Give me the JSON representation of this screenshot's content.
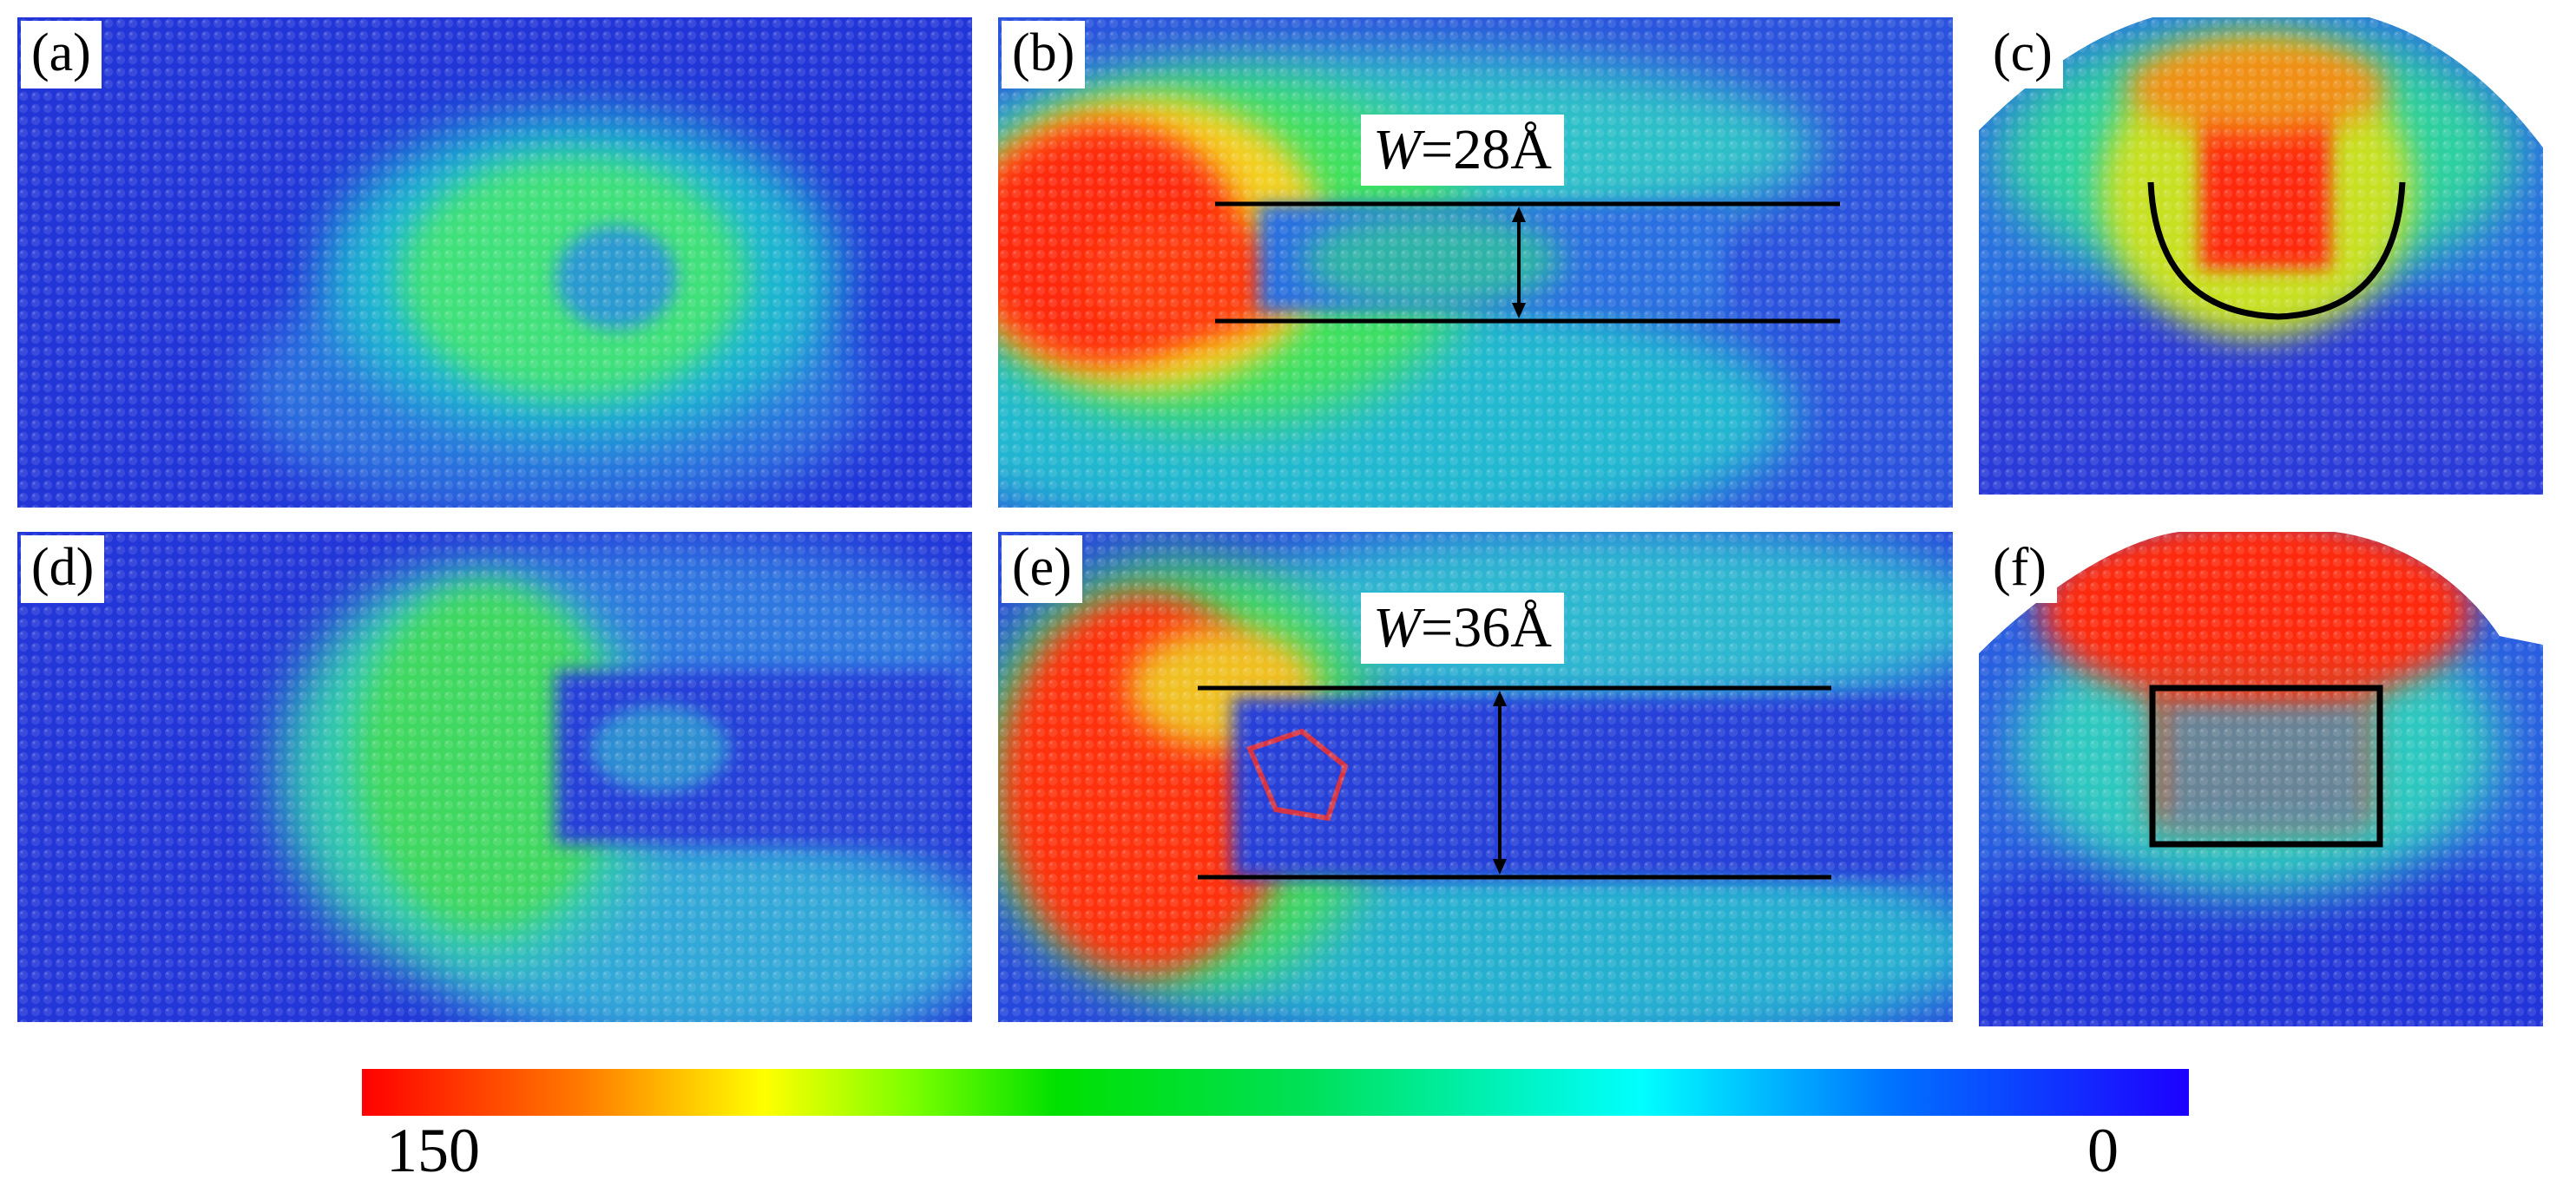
{
  "panels": {
    "a": {
      "label": "(a)"
    },
    "b": {
      "label": "(b)",
      "width_annotation": {
        "symbol": "W",
        "value": "=28Å"
      }
    },
    "c": {
      "label": "(c)"
    },
    "d": {
      "label": "(d)"
    },
    "e": {
      "label": "(e)",
      "width_annotation": {
        "symbol": "W",
        "value": "=36Å"
      }
    },
    "f": {
      "label": "(f)"
    }
  },
  "colorbar": {
    "max_label": "150",
    "min_label": "0",
    "colors": [
      "#ff0000",
      "#ff7a00",
      "#ffff00",
      "#00e000",
      "#00ffff",
      "#0070ff",
      "#1d00ff"
    ]
  }
}
